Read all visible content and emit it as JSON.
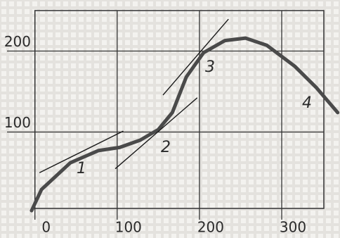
{
  "chart_data": {
    "type": "line",
    "xlim": [
      -10,
      370
    ],
    "ylim": [
      -10,
      250
    ],
    "xticks": [
      0,
      100,
      200,
      300
    ],
    "yticks": [
      100,
      200
    ],
    "grid": true,
    "annotations": [
      "1",
      "2",
      "3",
      "4"
    ],
    "series": [
      {
        "color": "#4a4a4a",
        "x": [
          -4,
          8,
          43,
          77,
          103,
          128,
          150,
          167,
          184,
          205,
          231,
          256,
          282,
          316,
          342,
          368
        ],
        "values": [
          3,
          29,
          62,
          77,
          81,
          90,
          103,
          124,
          168,
          198,
          213,
          216,
          207,
          181,
          155,
          124
        ]
      },
      {
        "color": "#1a1a1a",
        "x": [
          6,
          107
        ],
        "values": [
          50,
          101
        ]
      },
      {
        "color": "#1a1a1a",
        "x": [
          98,
          197
        ],
        "values": [
          55,
          142
        ]
      },
      {
        "color": "#1a1a1a",
        "x": [
          156,
          235
        ],
        "values": [
          146,
          239
        ]
      }
    ]
  }
}
